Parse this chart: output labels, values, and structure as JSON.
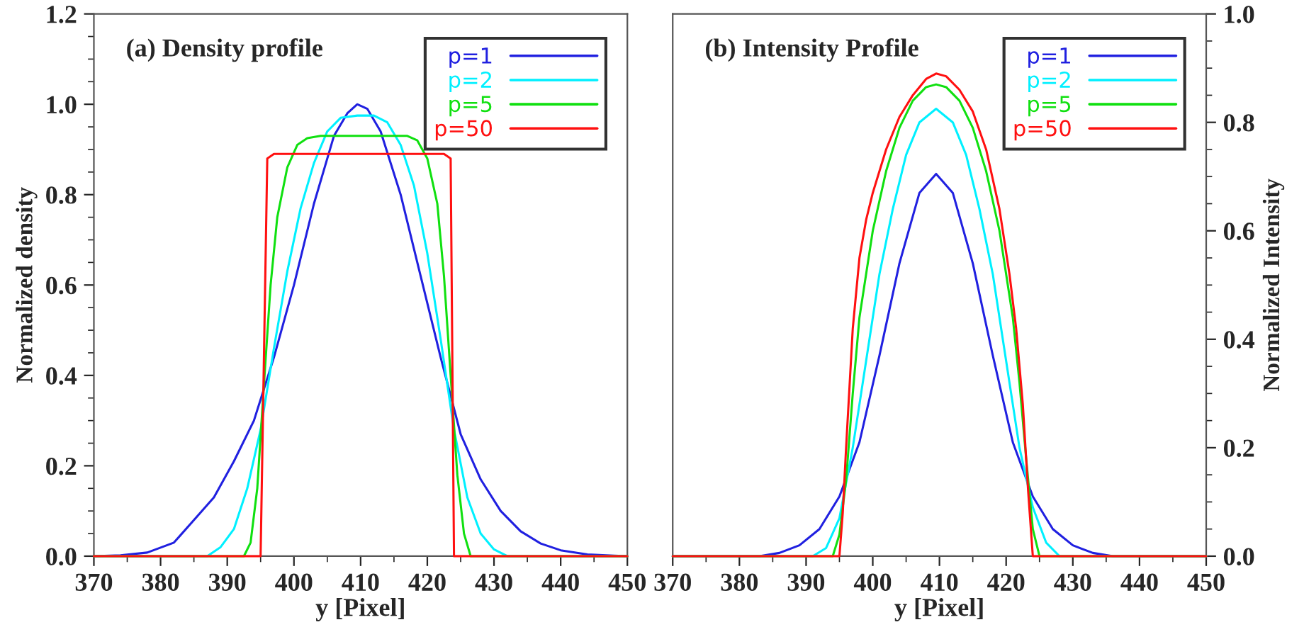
{
  "chart_data": [
    {
      "type": "line",
      "title": "(a) Density profile",
      "xlabel": "y [Pixel]",
      "ylabel": "Normalized density",
      "xlim": [
        370,
        450
      ],
      "ylim": [
        0,
        1.2
      ],
      "xticks": [
        370,
        380,
        390,
        400,
        410,
        420,
        430,
        440,
        450
      ],
      "yticks": [
        {
          "value": 0,
          "label": "0.0"
        },
        {
          "value": 0.2,
          "label": "0.2"
        },
        {
          "value": 0.4,
          "label": "0.4"
        },
        {
          "value": 0.6,
          "label": "0.6"
        },
        {
          "value": 0.8,
          "label": "0.8"
        },
        {
          "value": 1.0,
          "label": "1.0"
        },
        {
          "value": 1.2,
          "label": "1.2"
        }
      ],
      "grid": false,
      "legend": "top right",
      "line_style": "solid",
      "marker": "none",
      "series": [
        {
          "name": "p=1",
          "color": "#2020e0",
          "x": [
            370,
            374,
            378,
            382,
            385,
            388,
            391,
            394,
            397,
            400,
            403,
            406,
            408,
            409.5,
            411,
            413,
            416,
            419,
            422,
            425,
            428,
            431,
            434,
            437,
            440,
            444,
            448,
            450
          ],
          "values": [
            0,
            0.002,
            0.008,
            0.03,
            0.08,
            0.13,
            0.21,
            0.3,
            0.44,
            0.6,
            0.78,
            0.93,
            0.98,
            1.0,
            0.99,
            0.94,
            0.8,
            0.62,
            0.44,
            0.27,
            0.17,
            0.1,
            0.055,
            0.028,
            0.013,
            0.004,
            0.001,
            0
          ]
        },
        {
          "name": "p=2",
          "color": "#00f0ff",
          "x": [
            370,
            387,
            389,
            391,
            393,
            395,
            397,
            399,
            401,
            403,
            405,
            407,
            409.5,
            412,
            414,
            416,
            418,
            420,
            422,
            424,
            426,
            428,
            430,
            432,
            450
          ],
          "values": [
            0,
            0,
            0.02,
            0.06,
            0.15,
            0.28,
            0.46,
            0.63,
            0.77,
            0.87,
            0.94,
            0.97,
            0.975,
            0.975,
            0.96,
            0.91,
            0.82,
            0.67,
            0.48,
            0.28,
            0.13,
            0.05,
            0.015,
            0,
            0
          ]
        },
        {
          "name": "p=5",
          "color": "#10e010",
          "x": [
            370,
            392.5,
            393.5,
            394.5,
            395.5,
            396.5,
            397.5,
            399,
            400.5,
            402,
            404,
            417,
            418.5,
            420,
            421.5,
            422.5,
            423.5,
            424.5,
            425.5,
            426.5,
            450
          ],
          "values": [
            0,
            0,
            0.03,
            0.15,
            0.38,
            0.6,
            0.75,
            0.86,
            0.91,
            0.925,
            0.93,
            0.93,
            0.92,
            0.88,
            0.78,
            0.62,
            0.4,
            0.18,
            0.05,
            0,
            0
          ]
        },
        {
          "name": "p=50",
          "color": "#ff1010",
          "x": [
            370,
            395,
            396,
            397,
            422.5,
            423.5,
            424,
            450
          ],
          "values": [
            0,
            0,
            0.88,
            0.89,
            0.89,
            0.88,
            0,
            0
          ]
        }
      ]
    },
    {
      "type": "line",
      "title": "(b) Intensity Profile",
      "xlabel": "y [Pixel]",
      "ylabel": "Normalized Intensity",
      "xlim": [
        370,
        450
      ],
      "ylim": [
        0,
        1.0
      ],
      "xticks": [
        370,
        380,
        390,
        400,
        410,
        420,
        430,
        440,
        450
      ],
      "yticks": [
        {
          "value": 0,
          "label": "0.0"
        },
        {
          "value": 0.2,
          "label": "0.2"
        },
        {
          "value": 0.4,
          "label": "0.4"
        },
        {
          "value": 0.6,
          "label": "0.6"
        },
        {
          "value": 0.8,
          "label": "0.8"
        },
        {
          "value": 1.0,
          "label": "1.0"
        }
      ],
      "grid": false,
      "legend": "top right",
      "line_style": "solid",
      "marker": "none",
      "series": [
        {
          "name": "p=1",
          "color": "#2020e0",
          "x": [
            370,
            383,
            386,
            389,
            392,
            395,
            398,
            401,
            404,
            407,
            409.5,
            412,
            415,
            418,
            421,
            424,
            427,
            430,
            433,
            436,
            450
          ],
          "values": [
            0,
            0,
            0.006,
            0.02,
            0.05,
            0.11,
            0.21,
            0.37,
            0.54,
            0.67,
            0.705,
            0.67,
            0.54,
            0.37,
            0.21,
            0.11,
            0.05,
            0.02,
            0.006,
            0,
            0
          ]
        },
        {
          "name": "p=2",
          "color": "#00f0ff",
          "x": [
            370,
            391,
            393,
            395,
            397,
            399,
            401,
            403,
            405,
            407,
            409.5,
            412,
            414,
            416,
            418,
            420,
            422,
            424,
            426,
            428,
            450
          ],
          "values": [
            0,
            0,
            0.015,
            0.07,
            0.2,
            0.36,
            0.52,
            0.64,
            0.74,
            0.8,
            0.825,
            0.8,
            0.74,
            0.64,
            0.52,
            0.36,
            0.2,
            0.09,
            0.025,
            0,
            0
          ]
        },
        {
          "name": "p=5",
          "color": "#10e010",
          "x": [
            370,
            394,
            395,
            396,
            397,
            398,
            400,
            402,
            404,
            406,
            408,
            409.5,
            411,
            413,
            415,
            417,
            419,
            421,
            422,
            423,
            424,
            425,
            450
          ],
          "values": [
            0,
            0,
            0.04,
            0.14,
            0.3,
            0.44,
            0.6,
            0.71,
            0.79,
            0.84,
            0.865,
            0.87,
            0.865,
            0.84,
            0.79,
            0.71,
            0.6,
            0.44,
            0.32,
            0.18,
            0.05,
            0,
            0
          ]
        },
        {
          "name": "p=50",
          "color": "#ff1010",
          "x": [
            370,
            395,
            395.5,
            396,
            397,
            398,
            399,
            400,
            402,
            404,
            406,
            408,
            409.5,
            411,
            413,
            415,
            417,
            419,
            420.5,
            421.5,
            422.5,
            423.3,
            424,
            450
          ],
          "values": [
            0,
            0,
            0.08,
            0.2,
            0.42,
            0.55,
            0.62,
            0.67,
            0.75,
            0.81,
            0.85,
            0.88,
            0.89,
            0.885,
            0.86,
            0.82,
            0.75,
            0.64,
            0.52,
            0.42,
            0.28,
            0.12,
            0,
            0
          ]
        }
      ]
    }
  ]
}
